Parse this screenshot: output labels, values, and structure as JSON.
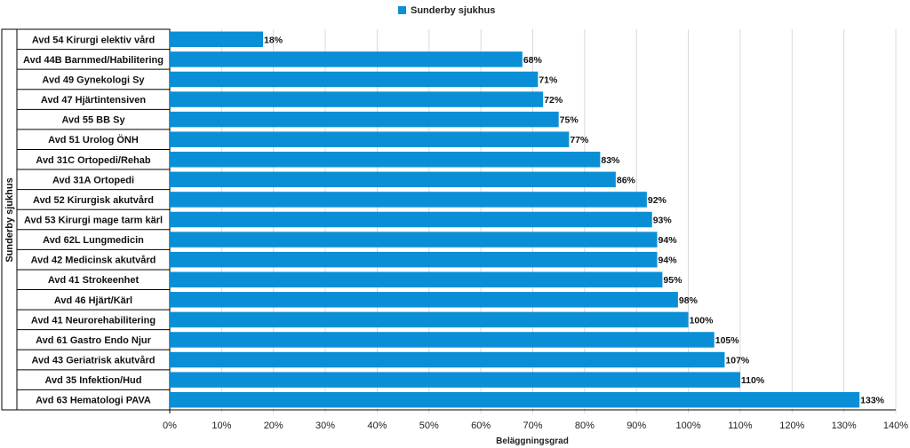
{
  "chart_data": {
    "type": "bar",
    "orientation": "horizontal",
    "group_label": "Sunderby sjukhus",
    "categories": [
      "Avd 54 Kirurgi elektiv vård",
      "Avd 44B Barnmed/Habilitering",
      "Avd 49 Gynekologi Sy",
      "Avd 47 Hjärtintensiven",
      "Avd 55 BB Sy",
      "Avd 51 Urolog ÖNH",
      "Avd 31C Ortopedi/Rehab",
      "Avd 31A Ortopedi",
      "Avd 52 Kirurgisk akutvård",
      "Avd 53 Kirurgi mage tarm kärl",
      "Avd 62L Lungmedicin",
      "Avd 42 Medicinsk akutvård",
      "Avd 41 Strokeenhet",
      "Avd 46 Hjärt/Kärl",
      "Avd 41 Neurorehabilitering",
      "Avd 61 Gastro Endo Njur",
      "Avd 43 Geriatrisk akutvård",
      "Avd 35 Infektion/Hud",
      "Avd 63 Hematologi PAVA"
    ],
    "series": [
      {
        "name": "Sunderby sjukhus",
        "color": "#0a8fd6",
        "values": [
          18,
          68,
          71,
          72,
          75,
          77,
          83,
          86,
          92,
          93,
          94,
          94,
          95,
          98,
          100,
          105,
          107,
          110,
          133
        ],
        "data_labels": [
          "18%",
          "68%",
          "71%",
          "72%",
          "75%",
          "77%",
          "83%",
          "86%",
          "92%",
          "93%",
          "94%",
          "94%",
          "95%",
          "98%",
          "100%",
          "105%",
          "107%",
          "110%",
          "133%"
        ]
      }
    ],
    "xlabel": "Beläggningsgrad",
    "ylabel": "",
    "xlim": [
      0,
      140
    ],
    "x_ticks": [
      0,
      10,
      20,
      30,
      40,
      50,
      60,
      70,
      80,
      90,
      100,
      110,
      120,
      130,
      140
    ],
    "x_tick_labels": [
      "0%",
      "10%",
      "20%",
      "30%",
      "40%",
      "50%",
      "60%",
      "70%",
      "80%",
      "90%",
      "100%",
      "110%",
      "120%",
      "130%",
      "140%"
    ],
    "grid": true,
    "legend_position": "top-center"
  }
}
